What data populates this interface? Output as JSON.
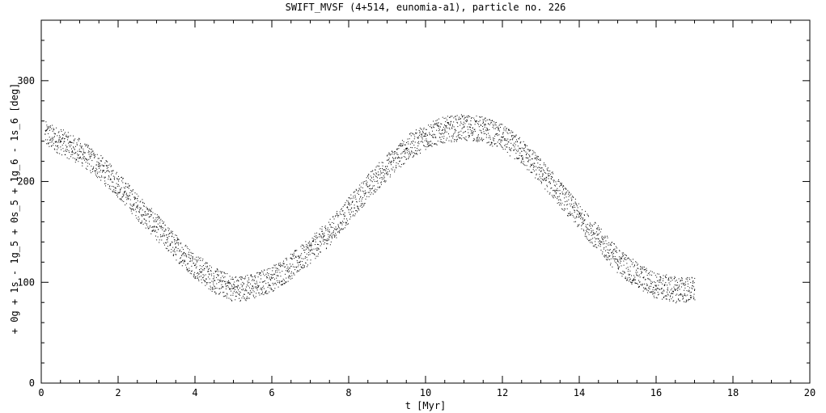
{
  "chart_data": {
    "type": "scatter",
    "title": "SWIFT_MVSF (4+514, eunomia-a1), particle no. 226",
    "xlabel": "t [Myr]",
    "ylabel": "+ 0g + 1s - 1g_5 + 0s_5 + 1g_6 - 1s_6 [deg]",
    "xlim": [
      0,
      20
    ],
    "ylim": [
      0,
      360
    ],
    "x_ticks": [
      "0",
      "2",
      "4",
      "6",
      "8",
      "10",
      "12",
      "14",
      "16",
      "18",
      "20"
    ],
    "y_ticks": [
      "0",
      "100",
      "200",
      "300"
    ],
    "grid": false,
    "legend": "none",
    "marker_color": "#000000",
    "series": [
      {
        "x": [
          0.1,
          0.5,
          1.0,
          1.5,
          2.0,
          2.5,
          3.0,
          3.5,
          4.0,
          4.5,
          5.0,
          5.5,
          6.0,
          6.5,
          7.0,
          7.5,
          8.0,
          8.5,
          9.0,
          9.5,
          10.0,
          10.5,
          11.0,
          11.5,
          12.0,
          12.5,
          13.0,
          13.5,
          14.0,
          14.5,
          15.0,
          15.5,
          16.0,
          16.5,
          17.0
        ],
        "y": [
          247,
          240,
          230,
          215,
          197,
          175,
          155,
          135,
          117,
          102,
          94,
          96,
          104,
          116,
          132,
          150,
          172,
          195,
          215,
          233,
          245,
          252,
          254,
          252,
          244,
          230,
          210,
          188,
          165,
          143,
          122,
          107,
          97,
          93,
          93
        ]
      }
    ]
  }
}
